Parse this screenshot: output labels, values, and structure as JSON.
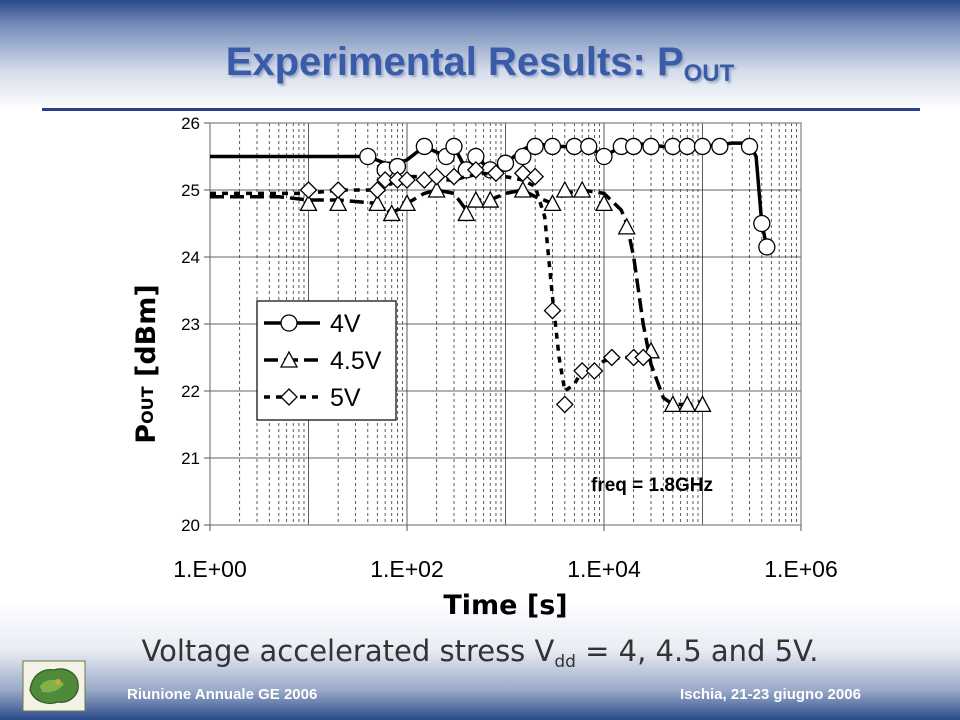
{
  "slide": {
    "title_main": "Experimental Results: P",
    "title_sub": "OUT",
    "caption_main": "Voltage accelerated stress V",
    "caption_sub": "dd",
    "caption_tail": " = 4, 4.5 and 5V.",
    "footer_left": "Riunione Annuale GE 2006",
    "footer_right": "Ischia, 21-23 giugno 2006"
  },
  "chart_data": {
    "type": "line",
    "x_scale": "log",
    "xlim": [
      1,
      1000000
    ],
    "ylim": [
      20,
      26
    ],
    "xlabel": "Time [s]",
    "ylabel_main": "P",
    "ylabel_sub": "OUT",
    "ylabel_tail": " [dBm]",
    "x_ticks": [
      1,
      100,
      10000,
      1000000
    ],
    "x_tick_labels": [
      "1.E+00",
      "1.E+02",
      "1.E+04",
      "1.E+06"
    ],
    "y_ticks": [
      20,
      21,
      22,
      23,
      24,
      25,
      26
    ],
    "y_tick_labels": [
      "20",
      "21",
      "22",
      "23",
      "24",
      "25",
      "26"
    ],
    "grid": true,
    "legend_position": "left-center",
    "annotation": "freq = 1.8GHz",
    "series": [
      {
        "name": "4V",
        "marker": "circle",
        "dash": "solid",
        "line": [
          [
            1,
            25.5
          ],
          [
            10,
            25.5
          ],
          [
            40,
            25.5
          ],
          [
            60,
            25.4
          ],
          [
            80,
            25.4
          ],
          [
            100,
            25.45
          ],
          [
            150,
            25.65
          ],
          [
            250,
            25.5
          ],
          [
            300,
            25.65
          ],
          [
            400,
            25.3
          ],
          [
            500,
            25.5
          ],
          [
            700,
            25.3
          ],
          [
            1000,
            25.4
          ],
          [
            1500,
            25.6
          ],
          [
            2000,
            25.7
          ],
          [
            3000,
            25.65
          ],
          [
            5000,
            25.65
          ],
          [
            7000,
            25.65
          ],
          [
            10000,
            25.5
          ],
          [
            15000,
            25.65
          ],
          [
            20000,
            25.7
          ],
          [
            40000,
            25.65
          ],
          [
            100000,
            25.65
          ],
          [
            200000,
            25.7
          ],
          [
            300000,
            25.7
          ],
          [
            350000,
            25.5
          ],
          [
            400000,
            24.5
          ],
          [
            450000,
            24.15
          ]
        ],
        "markers": [
          [
            40,
            25.5
          ],
          [
            60,
            25.3
          ],
          [
            80,
            25.35
          ],
          [
            150,
            25.65
          ],
          [
            250,
            25.5
          ],
          [
            300,
            25.65
          ],
          [
            400,
            25.3
          ],
          [
            500,
            25.5
          ],
          [
            700,
            25.3
          ],
          [
            1000,
            25.4
          ],
          [
            1500,
            25.5
          ],
          [
            2000,
            25.65
          ],
          [
            3000,
            25.65
          ],
          [
            5000,
            25.65
          ],
          [
            7000,
            25.65
          ],
          [
            10000,
            25.5
          ],
          [
            15000,
            25.65
          ],
          [
            20000,
            25.65
          ],
          [
            30000,
            25.65
          ],
          [
            50000,
            25.65
          ],
          [
            70000,
            25.65
          ],
          [
            100000,
            25.65
          ],
          [
            150000,
            25.65
          ],
          [
            300000,
            25.65
          ],
          [
            400000,
            24.5
          ],
          [
            450000,
            24.15
          ]
        ]
      },
      {
        "name": "4.5V",
        "marker": "triangle",
        "dash": "long-dash",
        "line": [
          [
            1,
            24.9
          ],
          [
            5,
            24.9
          ],
          [
            10,
            24.85
          ],
          [
            20,
            24.85
          ],
          [
            50,
            24.8
          ],
          [
            70,
            24.65
          ],
          [
            100,
            24.8
          ],
          [
            150,
            24.95
          ],
          [
            200,
            25.0
          ],
          [
            300,
            24.95
          ],
          [
            400,
            24.7
          ],
          [
            500,
            24.85
          ],
          [
            700,
            24.85
          ],
          [
            1000,
            24.95
          ],
          [
            1500,
            25.0
          ],
          [
            2000,
            24.9
          ],
          [
            3000,
            24.8
          ],
          [
            4000,
            24.95
          ],
          [
            6000,
            25.0
          ],
          [
            10000,
            24.95
          ],
          [
            15000,
            24.7
          ],
          [
            17000,
            24.5
          ],
          [
            20000,
            24.0
          ],
          [
            25000,
            23.0
          ],
          [
            30000,
            22.4
          ],
          [
            40000,
            21.9
          ],
          [
            50000,
            21.8
          ],
          [
            80000,
            21.8
          ],
          [
            100000,
            21.85
          ]
        ],
        "markers": [
          [
            10,
            24.8
          ],
          [
            20,
            24.8
          ],
          [
            50,
            24.8
          ],
          [
            70,
            24.65
          ],
          [
            100,
            24.8
          ],
          [
            200,
            25.0
          ],
          [
            400,
            24.65
          ],
          [
            500,
            24.85
          ],
          [
            700,
            24.85
          ],
          [
            1500,
            25.0
          ],
          [
            3000,
            24.8
          ],
          [
            4000,
            25.0
          ],
          [
            6000,
            25.0
          ],
          [
            10000,
            24.8
          ],
          [
            17000,
            24.45
          ],
          [
            30000,
            22.6
          ],
          [
            50000,
            21.8
          ],
          [
            70000,
            21.8
          ],
          [
            100000,
            21.8
          ]
        ]
      },
      {
        "name": "5V",
        "marker": "diamond",
        "dash": "short-dash",
        "line": [
          [
            1,
            24.95
          ],
          [
            10,
            24.95
          ],
          [
            20,
            25.0
          ],
          [
            50,
            25.0
          ],
          [
            60,
            25.05
          ],
          [
            80,
            25.15
          ],
          [
            100,
            25.2
          ],
          [
            150,
            25.2
          ],
          [
            200,
            25.15
          ],
          [
            300,
            25.15
          ],
          [
            400,
            25.2
          ],
          [
            600,
            25.25
          ],
          [
            1000,
            25.2
          ],
          [
            1500,
            25.15
          ],
          [
            2000,
            25.05
          ],
          [
            2500,
            24.6
          ],
          [
            3000,
            23.4
          ],
          [
            3500,
            22.5
          ],
          [
            4000,
            22.0
          ],
          [
            5000,
            22.1
          ],
          [
            6000,
            22.3
          ],
          [
            8000,
            22.35
          ],
          [
            10000,
            22.45
          ],
          [
            15000,
            22.5
          ],
          [
            20000,
            22.5
          ]
        ],
        "markers": [
          [
            10,
            25.0
          ],
          [
            20,
            25.0
          ],
          [
            50,
            25.0
          ],
          [
            60,
            25.15
          ],
          [
            80,
            25.15
          ],
          [
            100,
            25.15
          ],
          [
            150,
            25.15
          ],
          [
            200,
            25.2
          ],
          [
            300,
            25.2
          ],
          [
            500,
            25.3
          ],
          [
            800,
            25.25
          ],
          [
            1500,
            25.25
          ],
          [
            2000,
            25.2
          ],
          [
            3000,
            23.2
          ],
          [
            4000,
            21.8
          ],
          [
            6000,
            22.3
          ],
          [
            8000,
            22.3
          ],
          [
            12000,
            22.5
          ],
          [
            20000,
            22.5
          ],
          [
            25000,
            22.5
          ]
        ]
      }
    ]
  }
}
